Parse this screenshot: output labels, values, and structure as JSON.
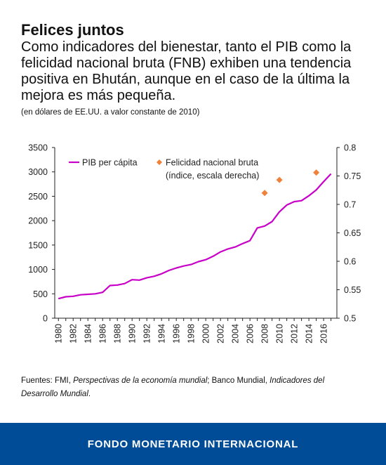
{
  "header": {
    "title": "Felices juntos",
    "subtitle": "Como indicadores del bienestar, tanto el PIB como la felicidad nacional bruta (FNB) exhiben una tendencia positiva en Bhután, aunque en el caso de la última la mejora es más pequeña.",
    "note": "(en dólares de EE.UU. a valor constante de 2010)"
  },
  "chart_data": {
    "type": "line",
    "x_ticks": [
      1980,
      1982,
      1984,
      1986,
      1988,
      1990,
      1992,
      1994,
      1996,
      1998,
      2000,
      2002,
      2004,
      2006,
      2008,
      2010,
      2012,
      2014,
      2016
    ],
    "y_left": {
      "lim": [
        0,
        3500
      ],
      "ticks": [
        0,
        500,
        1000,
        1500,
        2000,
        2500,
        3000,
        3500
      ]
    },
    "y_right": {
      "lim": [
        0.5,
        0.8
      ],
      "ticks": [
        "0.5",
        "0.55",
        "0.6",
        "0.65",
        "0.7",
        "0.75",
        "0.8"
      ]
    },
    "series": [
      {
        "name": "PIB per cápita",
        "kind": "line",
        "axis": "left",
        "color": "#c800c8",
        "x": [
          1980,
          1981,
          1982,
          1983,
          1984,
          1985,
          1986,
          1987,
          1988,
          1989,
          1990,
          1991,
          1992,
          1993,
          1994,
          1995,
          1996,
          1997,
          1998,
          1999,
          2000,
          2001,
          2002,
          2003,
          2004,
          2005,
          2006,
          2007,
          2008,
          2009,
          2010,
          2011,
          2012,
          2013,
          2014,
          2015,
          2016,
          2017
        ],
        "y": [
          400,
          440,
          450,
          480,
          490,
          500,
          530,
          670,
          680,
          710,
          790,
          780,
          830,
          860,
          910,
          980,
          1030,
          1070,
          1100,
          1160,
          1200,
          1270,
          1360,
          1420,
          1460,
          1530,
          1590,
          1850,
          1890,
          1980,
          2180,
          2320,
          2390,
          2410,
          2510,
          2630,
          2800,
          2960
        ]
      },
      {
        "name": "Felicidad nacional bruta",
        "name_line2": "(índice, escala derecha)",
        "kind": "scatter",
        "axis": "right",
        "color": "#f0813a",
        "x": [
          2008,
          2010,
          2015
        ],
        "y": [
          0.72,
          0.743,
          0.756
        ]
      }
    ],
    "legend": "top-left",
    "grid": false
  },
  "sources": {
    "prefix": "Fuentes: FMI, ",
    "pub1": "Perspectivas de la economía mundial",
    "mid": "; Banco Mundial, ",
    "pub2": "Indicadores del Desarrollo Mundial",
    "end": "."
  },
  "footer": {
    "label": "FONDO MONETARIO INTERNACIONAL"
  }
}
